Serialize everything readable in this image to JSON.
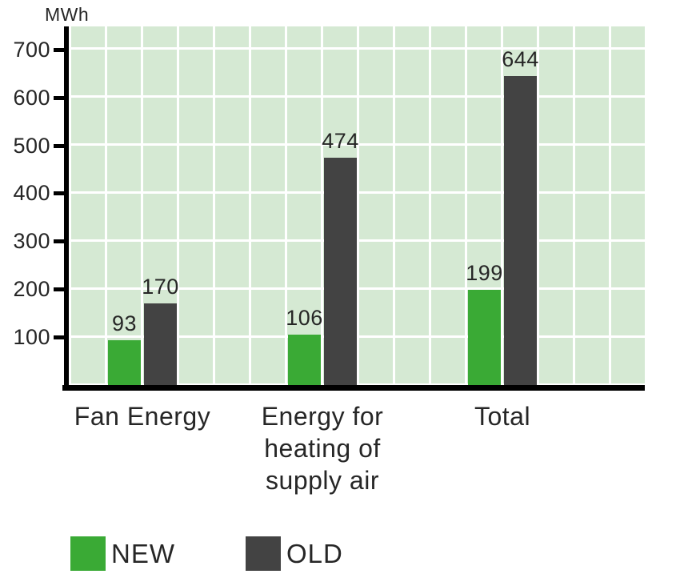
{
  "figure": {
    "unit_label": "MWh",
    "colors": {
      "new_series": "#3aaa35",
      "old_series": "#434343",
      "plot_background": "#d5e9d3",
      "gridline": "#ffffff",
      "axis": "#000000",
      "text": "#262626"
    }
  },
  "chart_data": {
    "type": "bar",
    "title": "",
    "ylabel": "MWh",
    "xlabel": "",
    "categories": [
      "Fan Energy",
      "Energy for heating of supply air",
      "Total"
    ],
    "series": [
      {
        "name": "NEW",
        "color": "#3aaa35",
        "values": [
          93,
          106,
          199
        ]
      },
      {
        "name": "OLD",
        "color": "#434343",
        "values": [
          170,
          474,
          644
        ]
      }
    ],
    "bar_value_labels": [
      [
        93,
        106,
        199
      ],
      [
        170,
        474,
        644
      ]
    ],
    "yticks": [
      100,
      200,
      300,
      400,
      500,
      600,
      700
    ],
    "ylim": [
      0,
      750
    ],
    "grid": true,
    "legend_position": "bottom"
  },
  "legend": {
    "items": [
      {
        "label": "NEW",
        "color": "#3aaa35"
      },
      {
        "label": "OLD",
        "color": "#434343"
      }
    ]
  }
}
